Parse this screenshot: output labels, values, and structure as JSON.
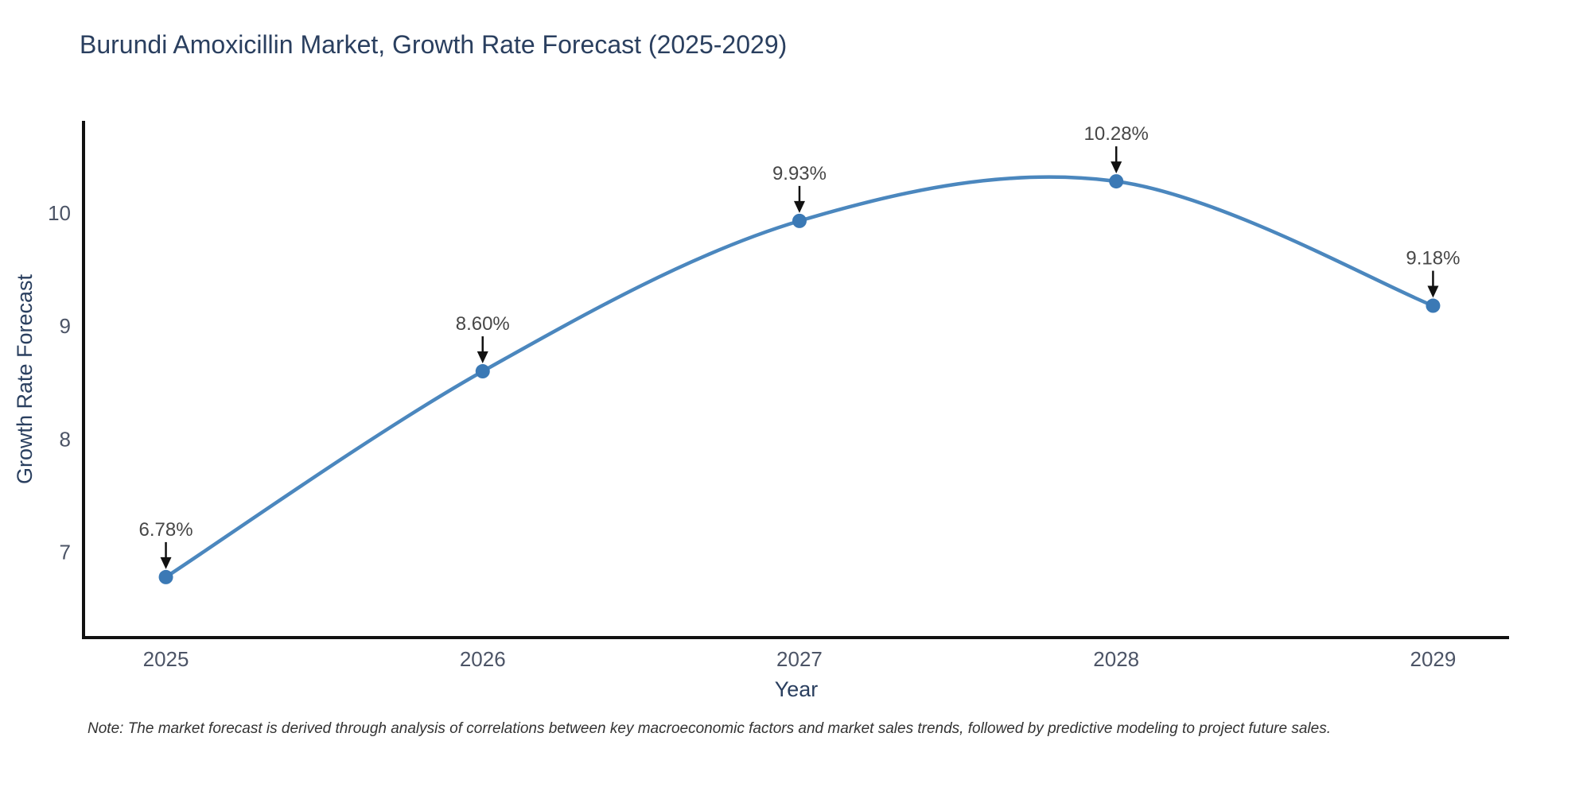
{
  "chart": {
    "note": "Note: The market forecast is derived through analysis of correlations between key macroeconomic factors and market sales trends, followed by predictive modeling to project future sales."
  },
  "chart_data": {
    "type": "line",
    "title": "Burundi Amoxicillin Market, Growth Rate Forecast (2025-2029)",
    "xlabel": "Year",
    "ylabel": "Growth Rate Forecast",
    "x": [
      2025,
      2026,
      2027,
      2028,
      2029
    ],
    "values": [
      6.78,
      8.6,
      9.93,
      10.28,
      9.18
    ],
    "point_labels": [
      "6.78%",
      "8.60%",
      "9.93%",
      "10.28%",
      "9.18%"
    ],
    "x_tick_labels": [
      "2025",
      "2026",
      "2027",
      "2028",
      "2029"
    ],
    "y_ticks": [
      7,
      8,
      9,
      10
    ],
    "xlim": [
      2024.74,
      2029.24
    ],
    "ylim": [
      6.245,
      10.815
    ],
    "line_shape": "spline",
    "grid": false,
    "legend_position": "none",
    "colors": {
      "line": "#4b87be",
      "marker": "#3b79b5",
      "axis": "#111111",
      "arrow": "#111111",
      "annotation_text": "#474747",
      "title_text": "#2a3f5f",
      "tick_text": "#4c5466",
      "note_text": "#333333",
      "background": "#ffffff"
    }
  }
}
